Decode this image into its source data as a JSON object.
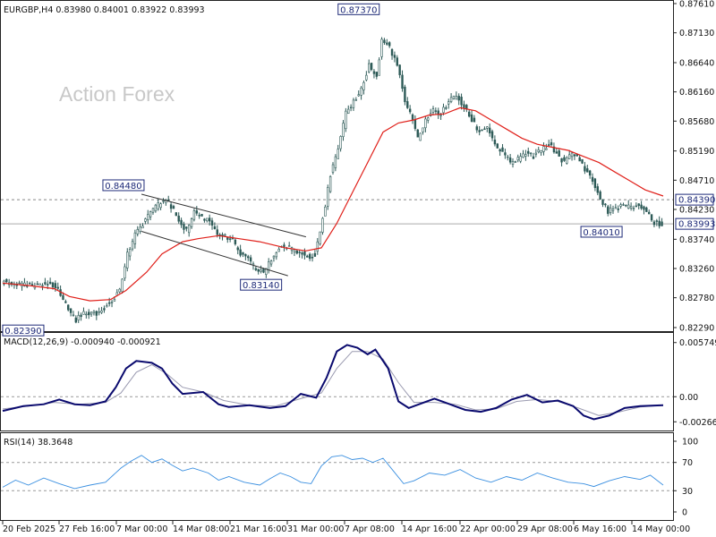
{
  "header": {
    "symbol_line": "EURGBP,H4  0.83980 0.84001 0.83922 0.83993",
    "macd_line": "MACD(12,26,9) -0.000940 -0.000921",
    "rsi_line": "RSI(14) 38.3648",
    "watermark": "Action Forex"
  },
  "colors": {
    "candle": "#2d5a57",
    "ma": "#e0201a",
    "macd": "#0a0a6e",
    "signal": "#9a9ab0",
    "rsi": "#3a8fe0",
    "label_box_border": "#1e2a78",
    "label_box_text": "#1e2a78",
    "grid_dash": "#888888"
  },
  "chart_data": {
    "type": "candlestick",
    "symbol": "EURGBP",
    "timeframe": "H4",
    "ohlc_last": {
      "open": 0.8398,
      "high": 0.84001,
      "low": 0.83922,
      "close": 0.83993
    },
    "x_labels": [
      "20 Feb 2025",
      "27 Feb 16:00",
      "7 Mar 00:00",
      "14 Mar 08:00",
      "21 Mar 16:00",
      "31 Mar 00:00",
      "7 Apr 08:00",
      "14 Apr 16:00",
      "22 Apr 00:00",
      "29 Apr 08:00",
      "6 May 16:00",
      "14 May 00:00"
    ],
    "price_axis": {
      "min": 0.8229,
      "max": 0.8761,
      "ticks": [
        "0.87610",
        "0.87130",
        "0.86640",
        "0.86160",
        "0.85680",
        "0.85190",
        "0.84710",
        "0.84230",
        "0.83740",
        "0.83260",
        "0.82780",
        "0.82290"
      ],
      "level_labels": [
        "0.84390",
        "0.83993"
      ]
    },
    "reference_lines": [
      0.8439,
      0.83993
    ],
    "trendlines": [
      {
        "start": [
          "7 Mar",
          0.8448
        ],
        "end": [
          "31 Mar",
          0.8378
        ]
      },
      {
        "start": [
          "7 Mar",
          0.8387
        ],
        "end": [
          "27 Mar",
          0.8314
        ]
      }
    ],
    "annotations": [
      {
        "text": "0.82390",
        "value": 0.8239
      },
      {
        "text": "0.84480",
        "value": 0.8448
      },
      {
        "text": "0.83140",
        "value": 0.8314
      },
      {
        "text": "0.87370",
        "value": 0.8737
      },
      {
        "text": "0.84010",
        "value": 0.8401
      }
    ],
    "price_path": [
      [
        0,
        0.8305
      ],
      [
        4,
        0.8302
      ],
      [
        9,
        0.8298
      ],
      [
        14,
        0.8296
      ],
      [
        19,
        0.8304
      ],
      [
        22,
        0.829
      ],
      [
        26,
        0.826
      ],
      [
        29,
        0.8242
      ],
      [
        33,
        0.8255
      ],
      [
        37,
        0.825
      ],
      [
        42,
        0.827
      ],
      [
        46,
        0.829
      ],
      [
        49,
        0.835
      ],
      [
        52,
        0.838
      ],
      [
        55,
        0.84
      ],
      [
        58,
        0.842
      ],
      [
        61,
        0.843
      ],
      [
        64,
        0.8442
      ],
      [
        67,
        0.842
      ],
      [
        70,
        0.84
      ],
      [
        72,
        0.8388
      ],
      [
        75,
        0.842
      ],
      [
        78,
        0.841
      ],
      [
        81,
        0.8405
      ],
      [
        84,
        0.8385
      ],
      [
        87,
        0.8378
      ],
      [
        90,
        0.837
      ],
      [
        93,
        0.835
      ],
      [
        96,
        0.834
      ],
      [
        99,
        0.8325
      ],
      [
        102,
        0.832
      ],
      [
        105,
        0.834
      ],
      [
        108,
        0.836
      ],
      [
        111,
        0.8362
      ],
      [
        114,
        0.8355
      ],
      [
        116,
        0.8352
      ],
      [
        119,
        0.8345
      ],
      [
        122,
        0.835
      ],
      [
        124,
        0.839
      ],
      [
        126,
        0.843
      ],
      [
        128,
        0.848
      ],
      [
        131,
        0.852
      ],
      [
        134,
        0.858
      ],
      [
        137,
        0.86
      ],
      [
        140,
        0.862
      ],
      [
        143,
        0.866
      ],
      [
        146,
        0.864
      ],
      [
        148,
        0.87
      ],
      [
        151,
        0.869
      ],
      [
        154,
        0.866
      ],
      [
        157,
        0.86
      ],
      [
        159,
        0.858
      ],
      [
        162,
        0.854
      ],
      [
        165,
        0.857
      ],
      [
        168,
        0.8585
      ],
      [
        171,
        0.858
      ],
      [
        174,
        0.86
      ],
      [
        177,
        0.861
      ],
      [
        180,
        0.859
      ],
      [
        183,
        0.857
      ],
      [
        186,
        0.855
      ],
      [
        189,
        0.856
      ],
      [
        192,
        0.853
      ],
      [
        195,
        0.8515
      ],
      [
        198,
        0.85
      ],
      [
        201,
        0.8505
      ],
      [
        204,
        0.8515
      ],
      [
        207,
        0.851
      ],
      [
        210,
        0.852
      ],
      [
        213,
        0.853
      ],
      [
        216,
        0.8515
      ],
      [
        219,
        0.85
      ],
      [
        222,
        0.8515
      ],
      [
        225,
        0.8505
      ],
      [
        227,
        0.849
      ],
      [
        230,
        0.847
      ],
      [
        233,
        0.844
      ],
      [
        236,
        0.842
      ],
      [
        239,
        0.8425
      ],
      [
        242,
        0.843
      ],
      [
        245,
        0.8425
      ],
      [
        248,
        0.843
      ],
      [
        251,
        0.842
      ],
      [
        254,
        0.84
      ],
      [
        257,
        0.8399
      ]
    ],
    "ma_path": [
      [
        0,
        0.8302
      ],
      [
        10,
        0.8298
      ],
      [
        20,
        0.8293
      ],
      [
        26,
        0.828
      ],
      [
        34,
        0.8273
      ],
      [
        42,
        0.8275
      ],
      [
        48,
        0.829
      ],
      [
        56,
        0.832
      ],
      [
        62,
        0.835
      ],
      [
        70,
        0.837
      ],
      [
        76,
        0.8375
      ],
      [
        84,
        0.838
      ],
      [
        92,
        0.8375
      ],
      [
        100,
        0.837
      ],
      [
        110,
        0.836
      ],
      [
        118,
        0.8355
      ],
      [
        124,
        0.836
      ],
      [
        130,
        0.84
      ],
      [
        136,
        0.845
      ],
      [
        142,
        0.85
      ],
      [
        148,
        0.855
      ],
      [
        154,
        0.8565
      ],
      [
        160,
        0.857
      ],
      [
        166,
        0.8578
      ],
      [
        172,
        0.858
      ],
      [
        178,
        0.859
      ],
      [
        184,
        0.8585
      ],
      [
        190,
        0.857
      ],
      [
        196,
        0.8555
      ],
      [
        202,
        0.854
      ],
      [
        208,
        0.853
      ],
      [
        214,
        0.8525
      ],
      [
        220,
        0.852
      ],
      [
        226,
        0.851
      ],
      [
        232,
        0.85
      ],
      [
        238,
        0.8485
      ],
      [
        244,
        0.847
      ],
      [
        250,
        0.8455
      ],
      [
        257,
        0.8445
      ]
    ],
    "macd": {
      "axis_ticks": [
        "0.005749",
        "0.00",
        "-0.002663"
      ],
      "range": [
        -0.0033,
        0.0062
      ],
      "macd_path": [
        [
          0,
          -0.0015
        ],
        [
          8,
          -0.001
        ],
        [
          16,
          -0.0008
        ],
        [
          22,
          -0.0003
        ],
        [
          28,
          -0.0008
        ],
        [
          34,
          -0.0009
        ],
        [
          40,
          -0.0005
        ],
        [
          44,
          0.001
        ],
        [
          48,
          0.003
        ],
        [
          52,
          0.0038
        ],
        [
          58,
          0.0036
        ],
        [
          62,
          0.003
        ],
        [
          66,
          0.0014
        ],
        [
          70,
          0.0003
        ],
        [
          78,
          0.0005
        ],
        [
          84,
          -0.0008
        ],
        [
          88,
          -0.0011
        ],
        [
          96,
          -0.0009
        ],
        [
          104,
          -0.0012
        ],
        [
          110,
          -0.001
        ],
        [
          116,
          0.0003
        ],
        [
          122,
          -0.0001
        ],
        [
          126,
          0.002
        ],
        [
          130,
          0.0048
        ],
        [
          134,
          0.0055
        ],
        [
          138,
          0.0052
        ],
        [
          142,
          0.0045
        ],
        [
          145,
          0.005
        ],
        [
          150,
          0.003
        ],
        [
          154,
          -0.0005
        ],
        [
          158,
          -0.0012
        ],
        [
          162,
          -0.0008
        ],
        [
          168,
          -0.0002
        ],
        [
          174,
          -0.0008
        ],
        [
          180,
          -0.0014
        ],
        [
          186,
          -0.0016
        ],
        [
          192,
          -0.0012
        ],
        [
          198,
          -0.0003
        ],
        [
          204,
          0.0002
        ],
        [
          210,
          -0.0006
        ],
        [
          216,
          -0.0004
        ],
        [
          222,
          -0.001
        ],
        [
          226,
          -0.002
        ],
        [
          230,
          -0.0024
        ],
        [
          236,
          -0.002
        ],
        [
          242,
          -0.0012
        ],
        [
          248,
          -0.001
        ],
        [
          257,
          -0.0009
        ]
      ],
      "signal_path": [
        [
          0,
          -0.0013
        ],
        [
          10,
          -0.001
        ],
        [
          20,
          -0.0006
        ],
        [
          30,
          -0.0008
        ],
        [
          40,
          -0.0006
        ],
        [
          46,
          0.0004
        ],
        [
          52,
          0.0026
        ],
        [
          58,
          0.0034
        ],
        [
          64,
          0.0024
        ],
        [
          70,
          0.001
        ],
        [
          78,
          0.0005
        ],
        [
          86,
          -0.0004
        ],
        [
          96,
          -0.0009
        ],
        [
          106,
          -0.001
        ],
        [
          116,
          -0.0002
        ],
        [
          124,
          0.0004
        ],
        [
          130,
          0.003
        ],
        [
          136,
          0.0048
        ],
        [
          142,
          0.0048
        ],
        [
          148,
          0.004
        ],
        [
          154,
          0.0015
        ],
        [
          160,
          -0.0006
        ],
        [
          168,
          -0.0006
        ],
        [
          176,
          -0.0008
        ],
        [
          184,
          -0.0014
        ],
        [
          192,
          -0.0013
        ],
        [
          200,
          -0.0005
        ],
        [
          208,
          -0.0003
        ],
        [
          216,
          -0.0005
        ],
        [
          224,
          -0.0012
        ],
        [
          232,
          -0.002
        ],
        [
          240,
          -0.0016
        ],
        [
          248,
          -0.0011
        ],
        [
          257,
          -0.0009
        ]
      ]
    },
    "rsi": {
      "axis_ticks": [
        "100",
        "70",
        "30",
        "0"
      ],
      "range": [
        0,
        100
      ],
      "levels": [
        70,
        30
      ],
      "rsi_path": [
        [
          0,
          35
        ],
        [
          5,
          45
        ],
        [
          10,
          38
        ],
        [
          16,
          48
        ],
        [
          22,
          40
        ],
        [
          28,
          33
        ],
        [
          34,
          38
        ],
        [
          40,
          42
        ],
        [
          46,
          62
        ],
        [
          50,
          72
        ],
        [
          54,
          80
        ],
        [
          58,
          70
        ],
        [
          62,
          75
        ],
        [
          66,
          66
        ],
        [
          70,
          58
        ],
        [
          74,
          62
        ],
        [
          80,
          55
        ],
        [
          84,
          45
        ],
        [
          88,
          50
        ],
        [
          94,
          42
        ],
        [
          100,
          38
        ],
        [
          104,
          47
        ],
        [
          108,
          55
        ],
        [
          112,
          50
        ],
        [
          116,
          42
        ],
        [
          120,
          40
        ],
        [
          124,
          65
        ],
        [
          128,
          78
        ],
        [
          132,
          80
        ],
        [
          136,
          74
        ],
        [
          140,
          76
        ],
        [
          144,
          70
        ],
        [
          148,
          76
        ],
        [
          152,
          58
        ],
        [
          156,
          40
        ],
        [
          160,
          44
        ],
        [
          166,
          55
        ],
        [
          172,
          52
        ],
        [
          178,
          60
        ],
        [
          184,
          48
        ],
        [
          190,
          42
        ],
        [
          196,
          50
        ],
        [
          202,
          45
        ],
        [
          208,
          55
        ],
        [
          214,
          48
        ],
        [
          220,
          42
        ],
        [
          226,
          40
        ],
        [
          230,
          36
        ],
        [
          236,
          44
        ],
        [
          242,
          50
        ],
        [
          248,
          46
        ],
        [
          252,
          52
        ],
        [
          257,
          38
        ]
      ]
    }
  }
}
